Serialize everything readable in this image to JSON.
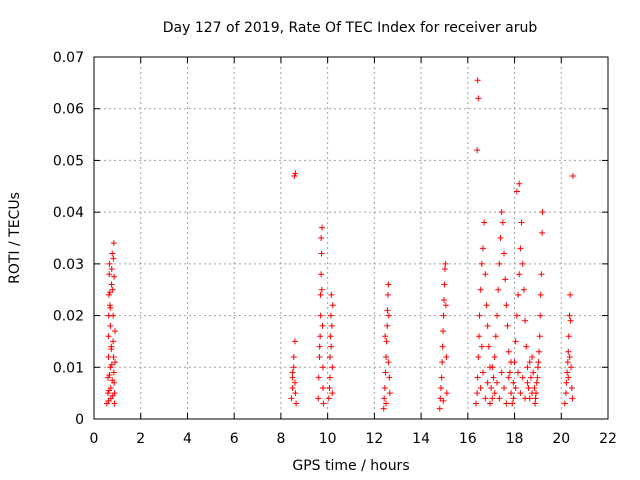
{
  "chart_data": {
    "type": "scatter",
    "title": "Day 127 of 2019, Rate Of TEC Index for receiver arub",
    "xlabel": "GPS time / hours",
    "ylabel": "ROTI / TECUs",
    "xlim": [
      0,
      22
    ],
    "ylim": [
      0,
      0.07
    ],
    "x_ticks": [
      0,
      2,
      4,
      6,
      8,
      10,
      12,
      14,
      16,
      18,
      20,
      22
    ],
    "x_tick_labels": [
      "0",
      "2",
      "4",
      "6",
      "8",
      "10",
      "12",
      "14",
      "16",
      "18",
      "20",
      "22"
    ],
    "y_ticks": [
      0,
      0.01,
      0.02,
      0.03,
      0.04,
      0.05,
      0.06,
      0.07
    ],
    "y_tick_labels": [
      "0",
      "0.01",
      "0.02",
      "0.03",
      "0.04",
      "0.05",
      "0.06",
      "0.07"
    ],
    "grid": true,
    "marker": "plus",
    "color": "#ff0000",
    "series": [
      {
        "points": [
          [
            0.55,
            0.003
          ],
          [
            0.6,
            0.005
          ],
          [
            0.6,
            0.008
          ],
          [
            0.62,
            0.012
          ],
          [
            0.62,
            0.016
          ],
          [
            0.63,
            0.02
          ],
          [
            0.64,
            0.024
          ],
          [
            0.65,
            0.028
          ],
          [
            0.66,
            0.03
          ],
          [
            0.68,
            0.022
          ],
          [
            0.7,
            0.018
          ],
          [
            0.7,
            0.01
          ],
          [
            0.72,
            0.006
          ],
          [
            0.72,
            0.004
          ],
          [
            0.74,
            0.014
          ],
          [
            0.75,
            0.026
          ],
          [
            0.76,
            0.029
          ],
          [
            0.78,
            0.032
          ],
          [
            0.8,
            0.025
          ],
          [
            0.82,
            0.02
          ],
          [
            0.82,
            0.015
          ],
          [
            0.84,
            0.012
          ],
          [
            0.85,
            0.009
          ],
          [
            0.86,
            0.007
          ],
          [
            0.88,
            0.005
          ],
          [
            0.88,
            0.003
          ],
          [
            0.9,
            0.011
          ],
          [
            0.9,
            0.017
          ],
          [
            0.85,
            0.034
          ],
          [
            0.83,
            0.031
          ],
          [
            0.8,
            0.0045
          ],
          [
            0.78,
            0.0075
          ],
          [
            0.76,
            0.0105
          ],
          [
            0.74,
            0.0135
          ],
          [
            0.7,
            0.0215
          ],
          [
            0.68,
            0.0245
          ],
          [
            0.66,
            0.0085
          ],
          [
            0.64,
            0.0055
          ],
          [
            0.62,
            0.0035
          ],
          [
            0.86,
            0.0275
          ],
          [
            8.45,
            0.004
          ],
          [
            8.5,
            0.006
          ],
          [
            8.5,
            0.008
          ],
          [
            8.55,
            0.01
          ],
          [
            8.55,
            0.012
          ],
          [
            8.6,
            0.007
          ],
          [
            8.62,
            0.005
          ],
          [
            8.65,
            0.003
          ],
          [
            8.6,
            0.015
          ],
          [
            8.58,
            0.047
          ],
          [
            8.62,
            0.0475
          ],
          [
            8.5,
            0.009
          ],
          [
            9.6,
            0.004
          ],
          [
            9.62,
            0.008
          ],
          [
            9.65,
            0.012
          ],
          [
            9.68,
            0.016
          ],
          [
            9.7,
            0.02
          ],
          [
            9.7,
            0.024
          ],
          [
            9.72,
            0.028
          ],
          [
            9.74,
            0.032
          ],
          [
            9.76,
            0.037
          ],
          [
            9.72,
            0.035
          ],
          [
            9.8,
            0.01
          ],
          [
            9.8,
            0.006
          ],
          [
            9.82,
            0.003
          ],
          [
            9.66,
            0.014
          ],
          [
            9.78,
            0.018
          ],
          [
            9.75,
            0.025
          ],
          [
            10.05,
            0.004
          ],
          [
            10.08,
            0.006
          ],
          [
            10.1,
            0.008
          ],
          [
            10.1,
            0.012
          ],
          [
            10.12,
            0.016
          ],
          [
            10.14,
            0.02
          ],
          [
            10.16,
            0.024
          ],
          [
            10.18,
            0.018
          ],
          [
            10.2,
            0.01
          ],
          [
            10.2,
            0.005
          ],
          [
            10.15,
            0.014
          ],
          [
            10.22,
            0.022
          ],
          [
            12.4,
            0.002
          ],
          [
            12.42,
            0.004
          ],
          [
            12.45,
            0.006
          ],
          [
            12.48,
            0.009
          ],
          [
            12.5,
            0.012
          ],
          [
            12.52,
            0.015
          ],
          [
            12.55,
            0.018
          ],
          [
            12.56,
            0.021
          ],
          [
            12.58,
            0.024
          ],
          [
            12.6,
            0.026
          ],
          [
            12.62,
            0.02
          ],
          [
            12.64,
            0.008
          ],
          [
            12.66,
            0.005
          ],
          [
            12.5,
            0.003
          ],
          [
            12.46,
            0.016
          ],
          [
            12.6,
            0.011
          ],
          [
            14.8,
            0.002
          ],
          [
            14.82,
            0.004
          ],
          [
            14.85,
            0.006
          ],
          [
            14.88,
            0.008
          ],
          [
            14.9,
            0.011
          ],
          [
            14.92,
            0.014
          ],
          [
            14.94,
            0.017
          ],
          [
            14.96,
            0.02
          ],
          [
            14.98,
            0.023
          ],
          [
            15.0,
            0.026
          ],
          [
            15.02,
            0.029
          ],
          [
            15.04,
            0.03
          ],
          [
            15.06,
            0.022
          ],
          [
            15.08,
            0.012
          ],
          [
            15.1,
            0.005
          ],
          [
            14.95,
            0.0035
          ],
          [
            16.35,
            0.003
          ],
          [
            16.4,
            0.005
          ],
          [
            16.42,
            0.008
          ],
          [
            16.45,
            0.012
          ],
          [
            16.48,
            0.016
          ],
          [
            16.5,
            0.02
          ],
          [
            16.4,
            0.052
          ],
          [
            16.45,
            0.062
          ],
          [
            16.42,
            0.0655
          ],
          [
            16.55,
            0.025
          ],
          [
            16.6,
            0.03
          ],
          [
            16.65,
            0.033
          ],
          [
            16.7,
            0.038
          ],
          [
            16.75,
            0.028
          ],
          [
            16.8,
            0.022
          ],
          [
            16.85,
            0.018
          ],
          [
            16.9,
            0.014
          ],
          [
            16.95,
            0.01
          ],
          [
            17.0,
            0.006
          ],
          [
            17.05,
            0.004
          ],
          [
            17.1,
            0.008
          ],
          [
            17.15,
            0.012
          ],
          [
            17.2,
            0.016
          ],
          [
            17.25,
            0.02
          ],
          [
            17.3,
            0.025
          ],
          [
            17.35,
            0.03
          ],
          [
            17.4,
            0.035
          ],
          [
            17.45,
            0.04
          ],
          [
            17.5,
            0.038
          ],
          [
            17.55,
            0.032
          ],
          [
            17.6,
            0.027
          ],
          [
            17.65,
            0.022
          ],
          [
            17.7,
            0.018
          ],
          [
            17.75,
            0.013
          ],
          [
            17.8,
            0.009
          ],
          [
            17.85,
            0.005
          ],
          [
            17.9,
            0.003
          ],
          [
            17.95,
            0.007
          ],
          [
            18.0,
            0.011
          ],
          [
            18.05,
            0.015
          ],
          [
            18.1,
            0.02
          ],
          [
            18.15,
            0.024
          ],
          [
            18.2,
            0.028
          ],
          [
            18.25,
            0.033
          ],
          [
            18.1,
            0.044
          ],
          [
            18.2,
            0.0455
          ],
          [
            18.3,
            0.038
          ],
          [
            18.35,
            0.03
          ],
          [
            18.4,
            0.025
          ],
          [
            18.45,
            0.019
          ],
          [
            18.5,
            0.014
          ],
          [
            18.55,
            0.01
          ],
          [
            18.6,
            0.006
          ],
          [
            18.65,
            0.004
          ],
          [
            18.7,
            0.008
          ],
          [
            18.75,
            0.012
          ],
          [
            18.8,
            0.009
          ],
          [
            18.85,
            0.006
          ],
          [
            18.9,
            0.004
          ],
          [
            18.95,
            0.007
          ],
          [
            19.0,
            0.01
          ],
          [
            19.05,
            0.013
          ],
          [
            19.1,
            0.02
          ],
          [
            19.15,
            0.028
          ],
          [
            19.2,
            0.04
          ],
          [
            19.18,
            0.036
          ],
          [
            19.12,
            0.024
          ],
          [
            19.08,
            0.016
          ],
          [
            19.02,
            0.011
          ],
          [
            18.98,
            0.008
          ],
          [
            18.92,
            0.005
          ],
          [
            18.88,
            0.003
          ],
          [
            16.55,
            0.006
          ],
          [
            16.65,
            0.009
          ],
          [
            16.75,
            0.004
          ],
          [
            16.85,
            0.007
          ],
          [
            16.95,
            0.003
          ],
          [
            17.05,
            0.01
          ],
          [
            17.15,
            0.005
          ],
          [
            17.25,
            0.007
          ],
          [
            17.35,
            0.004
          ],
          [
            17.45,
            0.009
          ],
          [
            17.55,
            0.006
          ],
          [
            17.65,
            0.003
          ],
          [
            17.75,
            0.008
          ],
          [
            17.85,
            0.011
          ],
          [
            17.95,
            0.004
          ],
          [
            18.05,
            0.006
          ],
          [
            18.15,
            0.009
          ],
          [
            18.25,
            0.005
          ],
          [
            18.35,
            0.008
          ],
          [
            18.45,
            0.004
          ],
          [
            18.55,
            0.007
          ],
          [
            18.65,
            0.011
          ],
          [
            18.75,
            0.005
          ],
          [
            16.6,
            0.014
          ],
          [
            20.15,
            0.003
          ],
          [
            20.2,
            0.005
          ],
          [
            20.22,
            0.007
          ],
          [
            20.25,
            0.009
          ],
          [
            20.28,
            0.011
          ],
          [
            20.3,
            0.013
          ],
          [
            20.32,
            0.016
          ],
          [
            20.35,
            0.02
          ],
          [
            20.38,
            0.024
          ],
          [
            20.4,
            0.019
          ],
          [
            20.42,
            0.01
          ],
          [
            20.45,
            0.006
          ],
          [
            20.48,
            0.004
          ],
          [
            20.5,
            0.047
          ],
          [
            20.3,
            0.008
          ],
          [
            20.36,
            0.012
          ]
        ]
      }
    ]
  }
}
